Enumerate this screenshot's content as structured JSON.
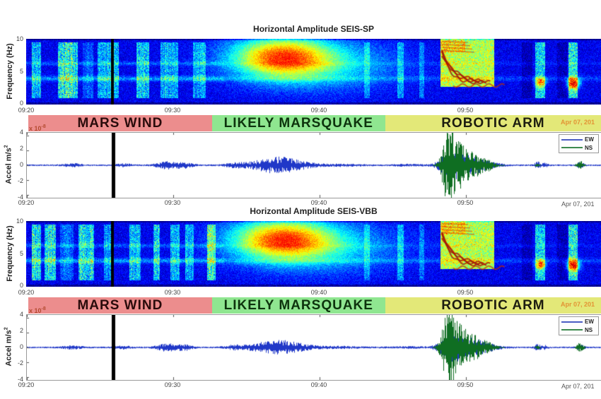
{
  "panels": [
    {
      "id": "sp",
      "title": "Horizontal Amplitude SEIS-SP"
    },
    {
      "id": "vbb",
      "title": "Horizontal Amplitude SEIS-VBB"
    }
  ],
  "axes": {
    "freq_label": "Frequency (Hz)",
    "freq_ticks": [
      "10",
      "5",
      "0"
    ],
    "accel_label": "Accel m/s",
    "accel_sup": "2",
    "accel_ticks": [
      "4",
      "2",
      "0",
      "-2",
      "-4"
    ],
    "time_ticks": [
      "09:20",
      "09:30",
      "09:40",
      "09:50"
    ],
    "exp_base": "x 10",
    "exp_sup": "-8",
    "date_label": "Apr 07, 201"
  },
  "bands": [
    {
      "label": "MARS WIND",
      "bg": "#ec8d8d",
      "fg": "#2a0b0b",
      "t0": 0.15,
      "t1": 12.7
    },
    {
      "label": "LIKELY MARSQUAKE",
      "bg": "#8fe690",
      "fg": "#0d330d",
      "t0": 12.7,
      "t1": 24.55
    },
    {
      "label": "ROBOTIC ARM",
      "bg": "#e3e878",
      "fg": "#1d1d10",
      "t0": 24.55,
      "t1": 39.3
    }
  ],
  "legend": {
    "items": [
      {
        "label": "EW",
        "color": "#4a5cc4"
      },
      {
        "label": "NS",
        "color": "#3d8a4e"
      }
    ]
  },
  "chart_data": [
    {
      "type": "heatmap",
      "title": "Horizontal Amplitude SEIS-SP",
      "ylabel": "Frequency (Hz)",
      "ylim": [
        0,
        10
      ],
      "x_ticks": [
        "09:20",
        "09:30",
        "09:40",
        "09:50"
      ],
      "x_range": [
        "09:20",
        "09:59"
      ],
      "colormap": "jet",
      "events": [
        {
          "label": "mars wind",
          "time": "09:20-09:33",
          "freq_hz": [
            1,
            9.5
          ],
          "appearance": "speckled cyan/green vertical column clusters over blue background"
        },
        {
          "label": "mask bar",
          "time": "09:26",
          "freq_hz": [
            0,
            10
          ],
          "appearance": "solid black vertical bar"
        },
        {
          "label": "likely marsquake",
          "time": "09:33-09:45",
          "freq_hz": [
            3,
            10
          ],
          "appearance": "broad energy blob, orange core 09:36-09:40 at 5.5-8.5 Hz"
        },
        {
          "label": "robotic arm",
          "time": "09:48-09:52",
          "freq_hz": [
            3,
            10
          ],
          "appearance": "strong yellow block with descending dark-red harmonic arcs"
        },
        {
          "label": "short bursts",
          "time": "09:55 and 09:57",
          "freq_hz": [
            1,
            9.5
          ],
          "appearance": "narrow cyan columns with green/orange spot near 3.5 Hz"
        }
      ]
    },
    {
      "type": "line",
      "title": "SEIS-SP horizontal acceleration",
      "ylabel": "Accel m/s2 (x10^-8)",
      "ylim": [
        -4,
        4
      ],
      "x_ticks": [
        "09:20",
        "09:30",
        "09:40",
        "09:50"
      ],
      "series": [
        {
          "name": "EW"
        },
        {
          "name": "NS"
        }
      ],
      "events": [
        {
          "label": "wind noise bumps",
          "time": "09:29-09:31",
          "peak_amp": 0.5
        },
        {
          "label": "mask bar",
          "time": "09:26",
          "peak_amp": 4
        },
        {
          "label": "marsquake spindle (EW)",
          "time": "09:34-09:40",
          "peak_amp": 1.0
        },
        {
          "label": "robotic arm burst (NS+EW)",
          "time": "09:48-09:52",
          "peak_amp": 3.9
        },
        {
          "label": "small burst (NS)",
          "time": "09:57",
          "peak_amp": 0.7
        }
      ]
    },
    {
      "type": "heatmap",
      "title": "Horizontal Amplitude SEIS-VBB",
      "ylabel": "Frequency (Hz)",
      "ylim": [
        0,
        10
      ],
      "x_ticks": [
        "09:20",
        "09:30",
        "09:40",
        "09:50"
      ],
      "x_range": [
        "09:20",
        "09:59"
      ],
      "colormap": "jet",
      "events": [
        {
          "label": "mars wind",
          "time": "09:20-09:33",
          "freq_hz": [
            1,
            9.5
          ],
          "appearance": "speckled cyan/green vertical column clusters over blue background"
        },
        {
          "label": "mask bar",
          "time": "09:26",
          "freq_hz": [
            0,
            10
          ],
          "appearance": "solid black vertical bar"
        },
        {
          "label": "likely marsquake",
          "time": "09:33-09:45",
          "freq_hz": [
            3,
            10
          ],
          "appearance": "broad energy blob, orange core 09:36-09:40 at 5.5-8.5 Hz"
        },
        {
          "label": "robotic arm",
          "time": "09:48-09:52",
          "freq_hz": [
            3,
            10
          ],
          "appearance": "strong yellow block with descending dark-red harmonic arcs"
        },
        {
          "label": "short bursts",
          "time": "09:55 and 09:57",
          "freq_hz": [
            1,
            9.5
          ],
          "appearance": "narrow cyan columns with green/orange spot near 3.5 Hz"
        }
      ]
    },
    {
      "type": "line",
      "title": "SEIS-VBB horizontal acceleration",
      "ylabel": "Accel m/s2 (x10^-8)",
      "ylim": [
        -4,
        4
      ],
      "x_ticks": [
        "09:20",
        "09:30",
        "09:40",
        "09:50"
      ],
      "series": [
        {
          "name": "EW"
        },
        {
          "name": "NS"
        }
      ],
      "events": [
        {
          "label": "wind noise bumps",
          "time": "09:29-09:31",
          "peak_amp": 0.5
        },
        {
          "label": "mask bar",
          "time": "09:26",
          "peak_amp": 4
        },
        {
          "label": "marsquake spindle (EW)",
          "time": "09:34-09:40",
          "peak_amp": 0.9
        },
        {
          "label": "robotic arm burst (NS+EW)",
          "time": "09:48-09:52",
          "peak_amp": 3.9
        },
        {
          "label": "small burst (NS)",
          "time": "09:57",
          "peak_amp": 0.7
        }
      ]
    }
  ],
  "render": {
    "tmax": 39.3,
    "vline_t": 5.9,
    "spec": {
      "base": 0.11,
      "noise": 0.13,
      "wind": {
        "start": 0.4,
        "end": 13.2
      },
      "rows": [
        {
          "f": 4.0,
          "w": 0.28,
          "amp": 0.16,
          "tEnd": 13.5,
          "fade": 0.5
        },
        {
          "f": 6.3,
          "w": 0.22,
          "amp": 0.1,
          "tEnd": 13.5,
          "fade": 0.4
        }
      ],
      "columns": [
        {
          "t0": 23.1,
          "t1": 23.5,
          "amp": 0.1
        },
        {
          "t0": 25.4,
          "t1": 25.8,
          "amp": 0.14
        },
        {
          "t0": 26.9,
          "t1": 27.2,
          "amp": 0.1
        },
        {
          "t0": 34.8,
          "t1": 35.5,
          "amp": 0.22
        },
        {
          "t0": 37.1,
          "t1": 37.7,
          "amp": 0.26
        }
      ],
      "darkcols": [
        {
          "t0": 33.9,
          "t1": 34.6,
          "amp": 0.05
        },
        {
          "t0": 36.3,
          "t1": 37.0,
          "amp": 0.05
        }
      ],
      "dots": [
        {
          "t": 35.15,
          "f": 3.4,
          "amp": 0.45,
          "st": 0.25,
          "sf": 0.5
        },
        {
          "t": 37.4,
          "f": 3.3,
          "amp": 0.55,
          "st": 0.3,
          "sf": 0.6
        }
      ],
      "blobs": [
        {
          "t": 17.4,
          "f": 7.3,
          "st": 2.4,
          "sf": 2.2,
          "amp": 0.6
        },
        {
          "t": 20.5,
          "f": 6.0,
          "st": 3.6,
          "sf": 2.6,
          "amp": 0.22
        }
      ],
      "arm": {
        "t0": 28.3,
        "t1": 32.0,
        "f0": 2.7,
        "amp": 0.44
      }
    },
    "wave": {
      "ymax": 4.4,
      "base": 0.1,
      "ew_color": "#2038c8",
      "ns_color": "#0f6e22",
      "ew": [
        {
          "t": 3.1,
          "a": 0.16,
          "w": 0.5
        },
        {
          "t": 6.6,
          "a": 0.18,
          "w": 0.35
        },
        {
          "t": 9.6,
          "a": 0.42,
          "w": 0.55
        },
        {
          "t": 10.8,
          "a": 0.28,
          "w": 0.4
        },
        {
          "t": 14.2,
          "a": 0.2,
          "w": 0.5
        },
        {
          "t": 17.2,
          "a": 0.92,
          "w": 1.35
        },
        {
          "t": 21.5,
          "a": 0.1,
          "w": 1.0
        },
        {
          "t": 26.0,
          "a": 0.08,
          "w": 0.8
        },
        {
          "t": 28.9,
          "a": 1.25,
          "w": 0.55
        },
        {
          "t": 29.9,
          "a": 0.85,
          "w": 0.8
        },
        {
          "t": 31.1,
          "a": 0.45,
          "w": 0.8
        },
        {
          "t": 34.9,
          "a": 0.35,
          "w": 0.16
        },
        {
          "t": 35.4,
          "a": 0.2,
          "w": 0.14
        },
        {
          "t": 37.8,
          "a": 0.3,
          "w": 0.2
        }
      ],
      "ns": [
        {
          "t": 28.75,
          "a": 3.6,
          "w": 0.33
        },
        {
          "t": 29.35,
          "a": 2.1,
          "w": 0.5
        },
        {
          "t": 30.2,
          "a": 1.2,
          "w": 0.7
        },
        {
          "t": 31.2,
          "a": 0.65,
          "w": 0.6
        },
        {
          "t": 34.9,
          "a": 0.22,
          "w": 0.12
        },
        {
          "t": 37.8,
          "a": 0.6,
          "w": 0.18
        }
      ]
    }
  }
}
